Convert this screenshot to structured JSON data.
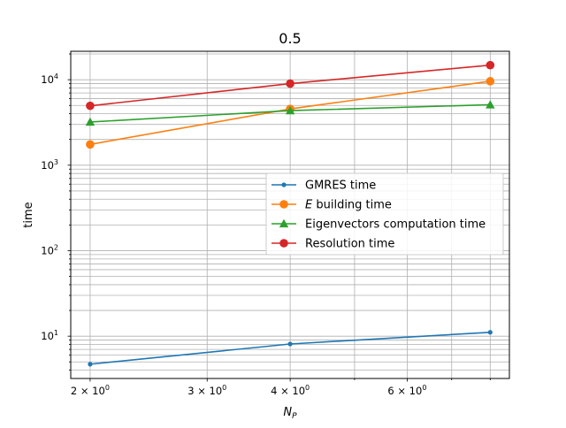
{
  "chart_data": {
    "type": "line",
    "title": "0.5",
    "xlabel": "N_P",
    "ylabel": "time",
    "x_scale": "log",
    "y_scale": "log",
    "xlim": [
      1.87,
      8.55
    ],
    "ylim": [
      3.2,
      21500
    ],
    "x": [
      2,
      4,
      8
    ],
    "x_ticks": [
      {
        "value": 2,
        "label": "2 × 10^0"
      },
      {
        "value": 3,
        "label": "3 × 10^0"
      },
      {
        "value": 4,
        "label": "4 × 10^0"
      },
      {
        "value": 6,
        "label": "6 × 10^0"
      }
    ],
    "y_ticks": [
      {
        "value": 10,
        "label": "10^1"
      },
      {
        "value": 100,
        "label": "10^2"
      },
      {
        "value": 1000,
        "label": "10^3"
      },
      {
        "value": 10000,
        "label": "10^4"
      }
    ],
    "grid": true,
    "legend_position": "center-right",
    "series": [
      {
        "name": "GMRES time",
        "values": [
          4.7,
          8.1,
          11.1
        ],
        "color": "#1f77b4",
        "marker": "dot"
      },
      {
        "name": "E building time",
        "values": [
          1750,
          4550,
          9600
        ],
        "color": "#ff7f0e",
        "marker": "circle"
      },
      {
        "name": "Eigenvectors computation time",
        "values": [
          3200,
          4350,
          5100
        ],
        "color": "#2ca02c",
        "marker": "triangle"
      },
      {
        "name": "Resolution time",
        "values": [
          4950,
          9000,
          14800
        ],
        "color": "#d62728",
        "marker": "circle"
      }
    ]
  }
}
